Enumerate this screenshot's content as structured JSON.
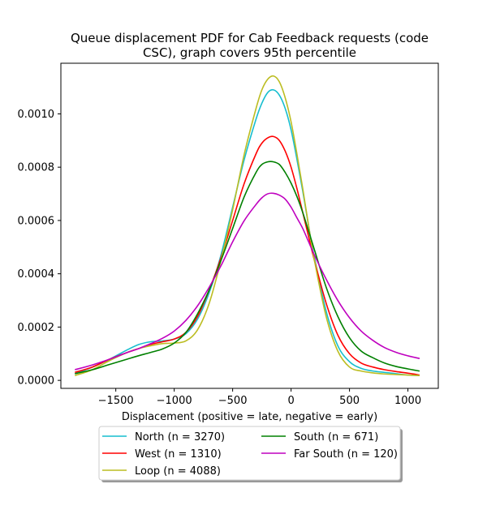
{
  "chart_data": {
    "type": "line",
    "title_lines": [
      "Queue displacement PDF for Cab Feedback  requests (code",
      "CSC), graph covers 95th percentile"
    ],
    "xlabel": "Displacement (positive = late, negative = early)",
    "ylabel": "",
    "xlim": [
      -1970,
      1260
    ],
    "ylim": [
      -3e-05,
      0.00119
    ],
    "x_ticks": [
      -1500,
      -1000,
      -500,
      0,
      500,
      1000
    ],
    "x_tick_labels": [
      "−1500",
      "−1000",
      "−500",
      "0",
      "500",
      "1000"
    ],
    "y_ticks": [
      0,
      0.0002,
      0.0004,
      0.0006,
      0.0008,
      0.001
    ],
    "y_tick_labels": [
      "0.0000",
      "0.0002",
      "0.0004",
      "0.0006",
      "0.0008",
      "0.0010"
    ],
    "grid": false,
    "legend_placement": "below plot, two columns, shadowed",
    "x": [
      -1850,
      -1700,
      -1550,
      -1400,
      -1300,
      -1200,
      -1100,
      -1000,
      -900,
      -800,
      -700,
      -600,
      -500,
      -400,
      -300,
      -250,
      -200,
      -150,
      -100,
      -50,
      0,
      50,
      100,
      150,
      200,
      300,
      400,
      500,
      600,
      700,
      800,
      900,
      1000,
      1100
    ],
    "series": [
      {
        "name": "North (n = 3270)",
        "color": "#17becf",
        "values": [
          2.5e-05,
          5e-05,
          8e-05,
          0.000115,
          0.000135,
          0.000145,
          0.000148,
          0.000155,
          0.000175,
          0.00023,
          0.00033,
          0.00047,
          0.00065,
          0.00083,
          0.00098,
          0.00104,
          0.00108,
          0.00109,
          0.00107,
          0.00102,
          0.00094,
          0.00083,
          0.00071,
          0.00058,
          0.00046,
          0.00026,
          0.00013,
          7e-05,
          4.5e-05,
          3.5e-05,
          3e-05,
          2.5e-05,
          2e-05,
          1.8e-05
        ]
      },
      {
        "name": "West (n = 1310)",
        "color": "#ff0000",
        "values": [
          3e-05,
          5e-05,
          8e-05,
          0.000105,
          0.00012,
          0.000135,
          0.000145,
          0.000155,
          0.00018,
          0.00024,
          0.00034,
          0.00046,
          0.0006,
          0.00074,
          0.00085,
          0.00089,
          0.00091,
          0.000915,
          0.0009,
          0.00086,
          0.0008,
          0.00072,
          0.00063,
          0.00054,
          0.00045,
          0.00029,
          0.00017,
          0.0001,
          6.5e-05,
          5e-05,
          4e-05,
          3.3e-05,
          2.7e-05,
          2e-05
        ]
      },
      {
        "name": "Loop (n = 4088)",
        "color": "#bcbd22",
        "values": [
          1.8e-05,
          4e-05,
          7.5e-05,
          0.000105,
          0.00012,
          0.00013,
          0.000138,
          0.00014,
          0.000148,
          0.00019,
          0.00029,
          0.00045,
          0.00064,
          0.00085,
          0.00102,
          0.00109,
          0.00113,
          0.001142,
          0.00112,
          0.00106,
          0.00097,
          0.00085,
          0.00072,
          0.00058,
          0.00045,
          0.00024,
          0.00011,
          5e-05,
          3.5e-05,
          2.8e-05,
          2.4e-05,
          2.2e-05,
          2e-05,
          1.8e-05
        ]
      },
      {
        "name": "South (n = 671)",
        "color": "#008000",
        "values": [
          2.5e-05,
          4e-05,
          6e-05,
          8e-05,
          9.3e-05,
          0.000105,
          0.000118,
          0.00014,
          0.00018,
          0.00025,
          0.00034,
          0.00045,
          0.00057,
          0.00069,
          0.00078,
          0.00081,
          0.00082,
          0.00082,
          0.00081,
          0.00078,
          0.00074,
          0.00069,
          0.00063,
          0.00056,
          0.00049,
          0.00035,
          0.00024,
          0.00016,
          0.00011,
          8.5e-05,
          6.5e-05,
          5.2e-05,
          4.3e-05,
          3.5e-05
        ]
      },
      {
        "name": "Far South (n = 120)",
        "color": "#bf00bf",
        "values": [
          4e-05,
          5.8e-05,
          8e-05,
          0.000105,
          0.00012,
          0.000138,
          0.000158,
          0.000185,
          0.000225,
          0.00028,
          0.00035,
          0.00043,
          0.00052,
          0.0006,
          0.00066,
          0.000685,
          0.0007,
          0.000702,
          0.000695,
          0.00068,
          0.00065,
          0.00061,
          0.00057,
          0.00052,
          0.00047,
          0.00038,
          0.0003,
          0.000235,
          0.000185,
          0.00015,
          0.000123,
          0.000105,
          9.2e-05,
          8.2e-05
        ]
      }
    ]
  }
}
